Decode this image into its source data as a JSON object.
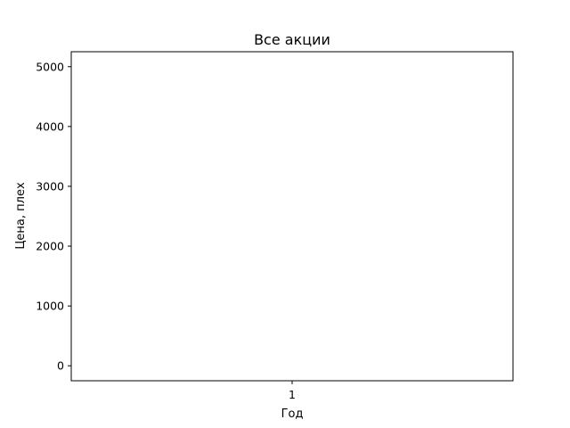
{
  "chart_data": {
    "type": "line",
    "title": "Все акции",
    "xlabel": "Год",
    "ylabel": "Цена, плех",
    "x_ticks": [
      "1"
    ],
    "y_ticks": [
      0,
      1000,
      2000,
      3000,
      4000,
      5000
    ],
    "xlim": [
      0.95,
      1.05
    ],
    "ylim": [
      -250,
      5250
    ],
    "grid": false,
    "series": []
  }
}
